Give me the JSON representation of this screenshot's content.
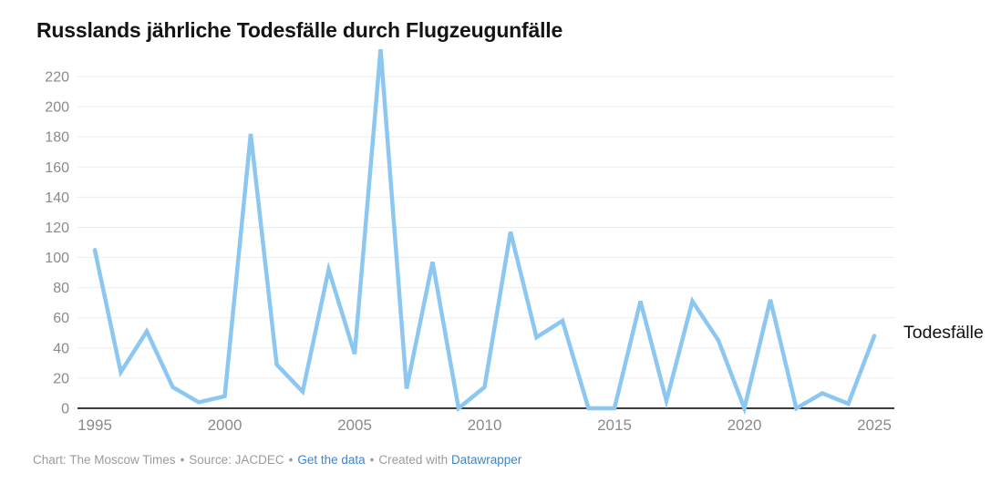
{
  "title": "Russlands jährliche Todesfälle durch Flugzeugunfälle",
  "series_label": "Todesfälle",
  "footer": {
    "chart_credit": "Chart: The Moscow Times",
    "source": "Source: JACDEC",
    "get_data_link": "Get the data",
    "created_with": "Created with",
    "datawrapper_link": "Datawrapper",
    "separator": "•"
  },
  "colors": {
    "line": "#8cc7f2",
    "grid": "#ececec",
    "axis": "#3c3c3c",
    "tick_text": "#8a8a8a",
    "title_text": "#141414",
    "footer_text": "#9b9b9b",
    "link": "#3f83c6"
  },
  "chart_data": {
    "type": "line",
    "title": "Russlands jährliche Todesfälle durch Flugzeugunfälle",
    "xlabel": "",
    "ylabel": "",
    "x": [
      1995,
      1996,
      1997,
      1998,
      1999,
      2000,
      2001,
      2002,
      2003,
      2004,
      2005,
      2006,
      2007,
      2008,
      2009,
      2010,
      2011,
      2012,
      2013,
      2014,
      2015,
      2016,
      2017,
      2018,
      2019,
      2020,
      2021,
      2022,
      2023,
      2024,
      2025
    ],
    "series": [
      {
        "name": "Todesfälle",
        "values": [
          105,
          24,
          51,
          14,
          4,
          8,
          182,
          29,
          11,
          92,
          36,
          238,
          13,
          97,
          0,
          14,
          117,
          47,
          58,
          0,
          0,
          71,
          5,
          71,
          45,
          0,
          72,
          0,
          10,
          3,
          48
        ]
      }
    ],
    "x_tick_labels": [
      "1995",
      "2000",
      "2005",
      "2010",
      "2015",
      "2020",
      "2025"
    ],
    "y_tick_labels": [
      "0",
      "20",
      "40",
      "60",
      "80",
      "100",
      "120",
      "140",
      "160",
      "180",
      "200",
      "220"
    ],
    "xlim": [
      1995,
      2025
    ],
    "ylim": [
      0,
      240
    ],
    "grid": "horizontal-only",
    "legend_position": "end-of-line-label"
  }
}
